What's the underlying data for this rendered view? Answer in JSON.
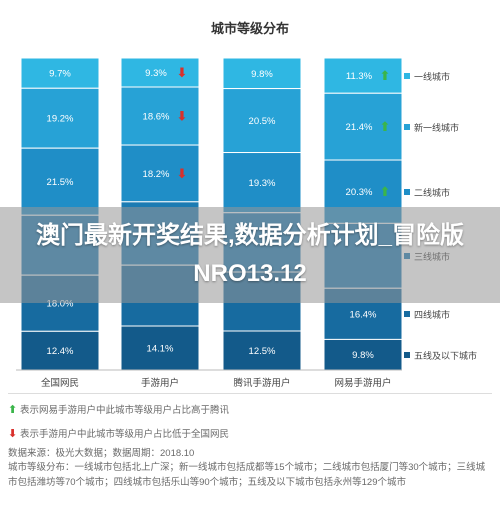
{
  "chart_data": {
    "type": "bar",
    "stacked": true,
    "title": "城市等级分布",
    "categories": [
      "全国网民",
      "手游用户",
      "腾讯手游用户",
      "网易手游用户"
    ],
    "series": [
      {
        "name": "一线城市",
        "color": "#2fb7e3",
        "values": [
          9.7,
          9.3,
          9.8,
          11.3
        ],
        "labels": [
          "9.7%",
          "9.3%",
          "9.8%",
          "11.3%"
        ]
      },
      {
        "name": "新一线城市",
        "color": "#27a2d6",
        "values": [
          19.2,
          18.6,
          20.5,
          21.4
        ],
        "labels": [
          "19.2%",
          "18.6%",
          "20.5%",
          "21.4%"
        ]
      },
      {
        "name": "二线城市",
        "color": "#1f8ec7",
        "values": [
          21.5,
          18.2,
          19.3,
          20.3
        ],
        "labels": [
          "21.5%",
          "18.2%",
          "19.3%",
          "20.3%"
        ]
      },
      {
        "name": "三线城市",
        "color": "#1b7bb3",
        "values": [
          19.2,
          20.3,
          19.0,
          20.8
        ],
        "labels": [
          "",
          "",
          "",
          ""
        ]
      },
      {
        "name": "四线城市",
        "color": "#176ba0",
        "values": [
          18.0,
          19.5,
          18.9,
          16.4
        ],
        "labels": [
          "18.0%",
          "",
          "",
          "16.4%"
        ]
      },
      {
        "name": "五线及以下城市",
        "color": "#135a8a",
        "values": [
          12.4,
          14.1,
          12.5,
          9.8
        ],
        "labels": [
          "12.4%",
          "14.1%",
          "12.5%",
          "9.8%"
        ]
      }
    ],
    "markers": [
      {
        "category": "手游用户",
        "series": "一线城市",
        "direction": "down"
      },
      {
        "category": "手游用户",
        "series": "新一线城市",
        "direction": "down"
      },
      {
        "category": "手游用户",
        "series": "二线城市",
        "direction": "down"
      },
      {
        "category": "网易手游用户",
        "series": "一线城市",
        "direction": "up"
      },
      {
        "category": "网易手游用户",
        "series": "新一线城市",
        "direction": "up"
      },
      {
        "category": "网易手游用户",
        "series": "二线城市",
        "direction": "up"
      }
    ],
    "ylim": [
      0,
      100
    ],
    "legend_position": "right"
  },
  "colors": {
    "up_arrow": "#3bb54a",
    "down_arrow": "#d9302b"
  },
  "overlay": {
    "text": "澳门最新开奖结果,数据分析计划_冒险版NRO13.12"
  },
  "notes": {
    "up_note": "表示网易手游用户中此城市等级用户占比高于腾讯",
    "down_note": "表示手游用户中此城市等级用户占比低于全国网民",
    "source": "数据来源：极光大数据；数据周期：2018.10",
    "definition": "城市等级分布：一线城市包括北上广深；新一线城市包括成都等15个城市；二线城市包括厦门等30个城市；三线城市包括潍坊等70个城市；四线城市包括乐山等90个城市；五线及以下城市包括永州等129个城市"
  }
}
